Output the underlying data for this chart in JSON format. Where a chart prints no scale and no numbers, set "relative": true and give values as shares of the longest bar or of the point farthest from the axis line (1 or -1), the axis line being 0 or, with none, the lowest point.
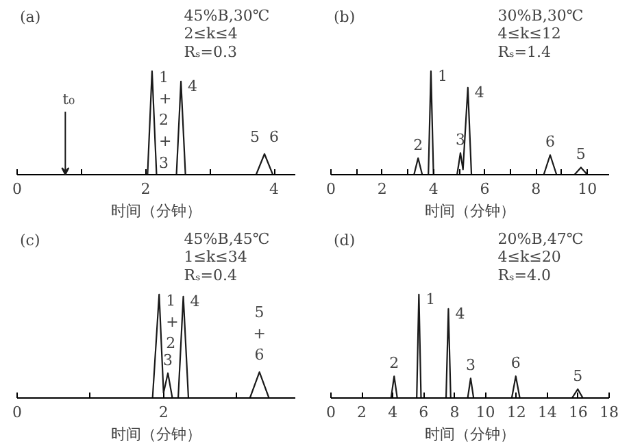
{
  "chart_data": [
    {
      "type": "line",
      "relative": true,
      "title": "(a)",
      "xlabel": "时间（分钟）",
      "xlim": [
        0,
        4.33
      ],
      "xticks": [
        0,
        {
          "value": 1,
          "label": null
        },
        2,
        {
          "value": 3,
          "label": null
        },
        4
      ],
      "x": [
        0,
        2.03,
        2.1,
        2.17,
        2.48,
        2.55,
        2.62,
        3.72,
        3.85,
        3.98,
        4.33
      ],
      "series": [
        {
          "color": "#1a1a1a",
          "values": [
            0,
            0,
            1,
            0,
            0,
            0.9,
            0,
            0,
            0.2,
            0,
            0
          ]
        }
      ],
      "annotations": [
        "45%B,30℃",
        "2≤k≤4",
        "Rₛ=0.3",
        {
          "text": "1\n+\n2\n+\n3",
          "x": 2.1,
          "y": 1
        },
        {
          "text": "4",
          "x": 2.55,
          "y": 0.9
        },
        {
          "text": "5  6",
          "x": 3.85,
          "y": 0.2
        },
        {
          "text": "t₀",
          "x": 0.75,
          "y": 0
        }
      ]
    },
    {
      "type": "line",
      "relative": true,
      "title": "(b)",
      "xlabel": "时间（分钟）",
      "xlim": [
        0,
        10.85
      ],
      "xticks": [
        0,
        {
          "value": 1,
          "label": null
        },
        2,
        {
          "value": 3,
          "label": null
        },
        4,
        {
          "value": 5,
          "label": null
        },
        6,
        {
          "value": 7,
          "label": null
        },
        8,
        {
          "value": 9,
          "label": null
        },
        10
      ],
      "x": [
        0,
        3.24,
        3.4,
        3.56,
        3.8,
        3.9,
        4.0,
        4.92,
        5.05,
        5.15,
        5.34,
        5.48,
        8.3,
        8.55,
        8.8,
        9.5,
        9.75,
        10.0,
        10.85
      ],
      "series": [
        {
          "color": "#1a1a1a",
          "values": [
            0,
            0,
            0.16,
            0,
            0,
            1,
            0,
            0,
            0.21,
            0.05,
            0.84,
            0,
            0,
            0.19,
            0,
            0,
            0.07,
            0,
            0
          ]
        }
      ],
      "annotations": [
        "30%B,30℃",
        "4≤k≤12",
        "Rₛ=1.4",
        {
          "text": "1",
          "x": 3.9,
          "y": 1
        },
        {
          "text": "2",
          "x": 3.4,
          "y": 0.16
        },
        {
          "text": "3",
          "x": 5.05,
          "y": 0.21
        },
        {
          "text": "4",
          "x": 5.34,
          "y": 0.84
        },
        {
          "text": "6",
          "x": 8.55,
          "y": 0.19
        },
        {
          "text": "5",
          "x": 9.75,
          "y": 0.07
        }
      ]
    },
    {
      "type": "line",
      "relative": true,
      "title": "(c)",
      "xlabel": "时间（分钟）",
      "xlim": [
        0,
        3.8
      ],
      "xticks": [
        0,
        {
          "value": 1,
          "label": null
        },
        2,
        {
          "value": 3,
          "label": null
        }
      ],
      "x": [
        0,
        1.85,
        1.94,
        2.0,
        2.06,
        2.12,
        2.2,
        2.27,
        2.34,
        3.18,
        3.31,
        3.44,
        3.8
      ],
      "series": [
        {
          "color": "#1a1a1a",
          "values": [
            0,
            0,
            1,
            0.05,
            0.24,
            0,
            0,
            0.98,
            0,
            0,
            0.25,
            0,
            0
          ]
        }
      ],
      "annotations": [
        "45%B,45℃",
        "1≤k≤34",
        "Rₛ=0.4",
        {
          "text": "1\n+\n2",
          "x": 1.94,
          "y": 1
        },
        {
          "text": "3",
          "x": 2.06,
          "y": 0.24
        },
        {
          "text": "4",
          "x": 2.27,
          "y": 0.98
        },
        {
          "text": "5\n+\n6",
          "x": 3.31,
          "y": 0.25
        }
      ]
    },
    {
      "type": "line",
      "relative": true,
      "title": "(d)",
      "xlabel": "时间（分钟）",
      "xlim": [
        0,
        18
      ],
      "xticks": [
        0,
        2,
        4,
        6,
        8,
        10,
        12,
        14,
        16,
        18
      ],
      "x": [
        0,
        3.89,
        4.09,
        4.29,
        5.55,
        5.69,
        5.83,
        7.45,
        7.6,
        7.75,
        8.85,
        9.04,
        9.23,
        11.7,
        11.96,
        12.22,
        15.6,
        15.97,
        16.3,
        18
      ],
      "series": [
        {
          "color": "#1a1a1a",
          "values": [
            0,
            0,
            0.21,
            0,
            0,
            1,
            0,
            0,
            0.86,
            0,
            0,
            0.19,
            0,
            0,
            0.21,
            0,
            0,
            0.085,
            0,
            0
          ]
        }
      ],
      "annotations": [
        "20%B,47℃",
        "4≤k≤20",
        "Rₛ=4.0",
        {
          "text": "1",
          "x": 5.69,
          "y": 1
        },
        {
          "text": "2",
          "x": 4.09,
          "y": 0.21
        },
        {
          "text": "4",
          "x": 7.6,
          "y": 0.86
        },
        {
          "text": "3",
          "x": 9.04,
          "y": 0.19
        },
        {
          "text": "6",
          "x": 11.96,
          "y": 0.21
        },
        {
          "text": "5",
          "x": 15.97,
          "y": 0.085
        }
      ]
    }
  ]
}
